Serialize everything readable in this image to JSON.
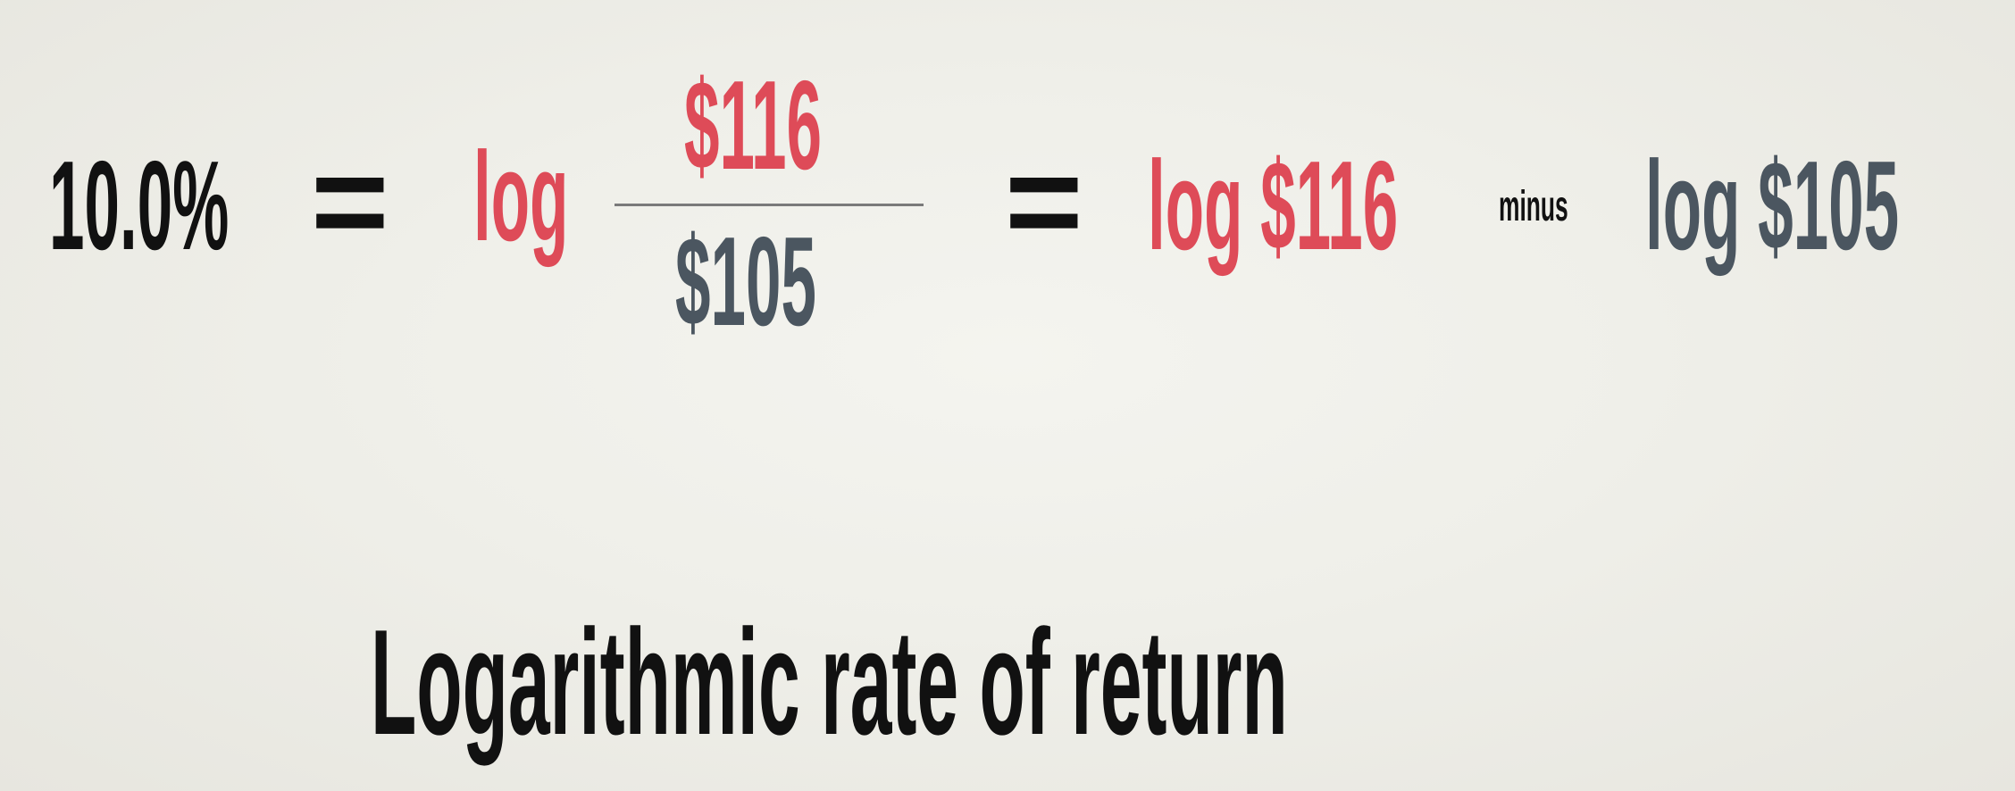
{
  "equation": {
    "result": "10.0%",
    "equals_1": "=",
    "log_label": "log",
    "numerator": "$116",
    "denominator": "$105",
    "equals_2": "=",
    "log_numerator": "log $116",
    "operator": "minus",
    "log_denominator": "log $105"
  },
  "caption": "Logarithmic rate of return",
  "colors": {
    "background": "#efefe9",
    "text_dark": "#111111",
    "accent_red": "#de4b58",
    "accent_slate": "#4b5660",
    "fraction_bar": "#7a7a7a"
  }
}
